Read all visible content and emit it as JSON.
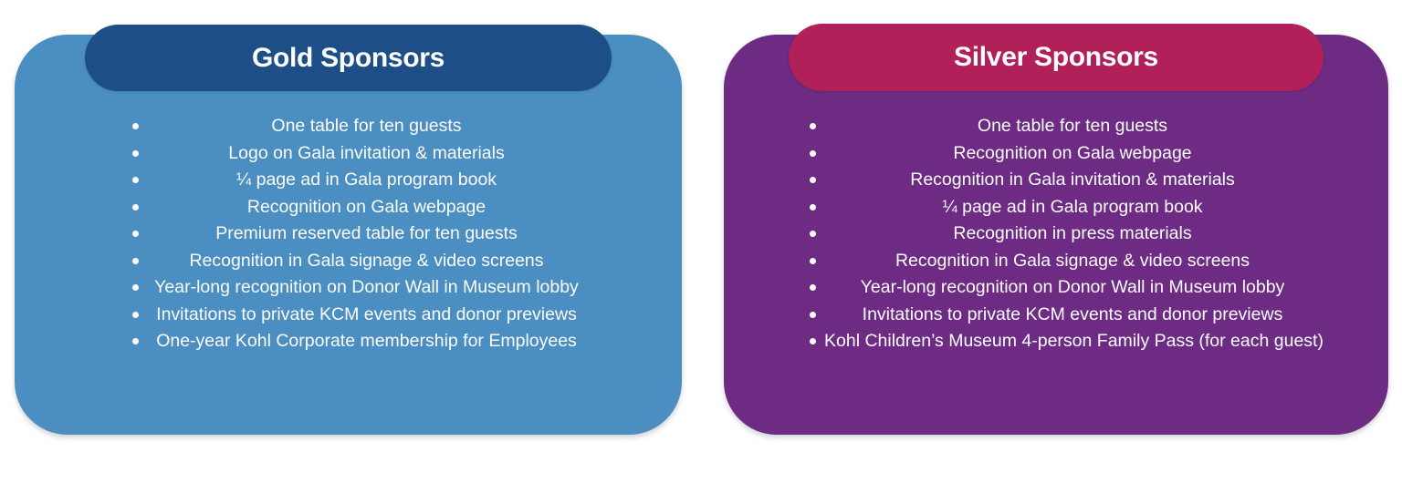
{
  "page": {
    "background_color": "#ffffff",
    "text_color": "#ffffff"
  },
  "cards": [
    {
      "id": "gold",
      "title": "Gold Sponsors",
      "header_color": "#1E4E87",
      "body_color": "#4A8EC2",
      "bullet_glyph": "•",
      "benefits": [
        "One table for ten guests",
        "Logo on Gala invitation & materials",
        "¼ page ad in Gala program book",
        "Recognition on Gala webpage",
        "Premium reserved table for ten guests",
        "Recognition in Gala signage & video screens",
        "Year-long recognition on Donor Wall in Museum lobby",
        "Invitations to private KCM events and donor previews",
        "One-year Kohl Corporate membership for Employees"
      ]
    },
    {
      "id": "silver",
      "title": "Silver Sponsors",
      "header_color": "#B12059",
      "body_color": "#6D2B84",
      "bullet_glyph": "•",
      "benefits": [
        "One table for ten guests",
        "Recognition on Gala webpage",
        "Recognition in Gala invitation & materials",
        "¼ page ad in Gala program book",
        "Recognition in press materials",
        "Recognition in Gala signage & video screens",
        "Year-long recognition on Donor Wall in Museum lobby",
        "Invitations to private KCM events and donor previews",
        "Kohl Children’s Museum 4-person Family Pass (for each guest)"
      ]
    }
  ]
}
